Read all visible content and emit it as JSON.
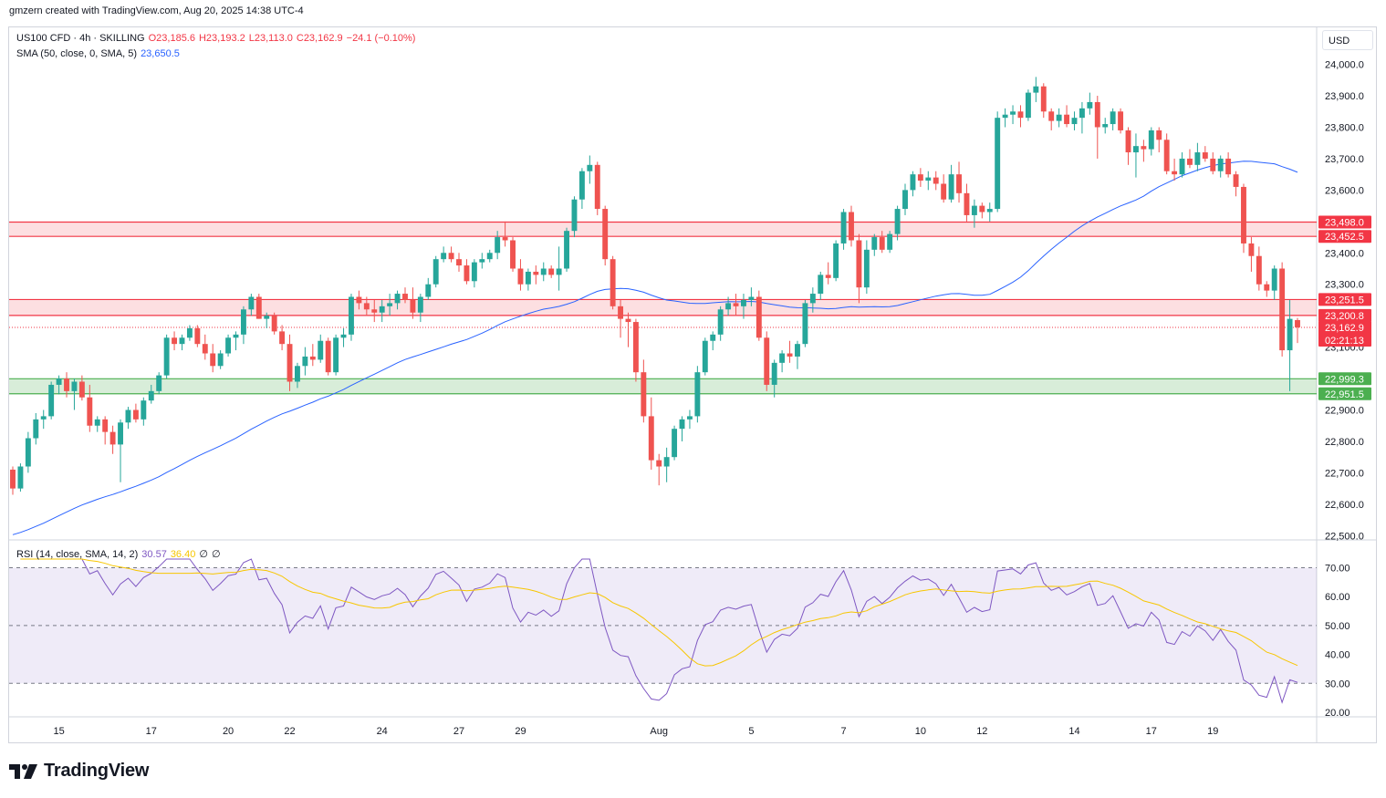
{
  "header": {
    "credit": "gmzern created with TradingView.com, Aug 20, 2025 14:38 UTC-4"
  },
  "legend": {
    "symbol": "US100 CFD · 4h · SKILLING",
    "open": "O23,185.6",
    "high": "H23,193.2",
    "low": "L23,113.0",
    "close": "C23,162.9",
    "change": "−24.1 (−0.10%)",
    "sma_label": "SMA (50, close, 0, SMA, 5)",
    "sma_value": "23,650.5",
    "rsi_label": "RSI (14, close, SMA, 14, 2)",
    "rsi_value": "30.57",
    "rsi_ma_value": "36.40",
    "rsi_extra1": "∅",
    "rsi_extra2": "∅"
  },
  "currency_button": "USD",
  "footer": {
    "brand": "TradingView"
  },
  "colors": {
    "up": "#26a69a",
    "down": "#ef5350",
    "sma": "#2962ff",
    "rsi": "#7e57c2",
    "rsi_ma": "#f7c600",
    "resistance_zone": "#f23645",
    "support_zone": "#4caf50"
  },
  "chart_data": {
    "type": "candlestick",
    "symbol": "US100 CFD",
    "timeframe": "4h",
    "y_ticks": [
      "24,000.0",
      "23,900.0",
      "23,800.0",
      "23,700.0",
      "23,600.0",
      "23,500.0",
      "23,400.0",
      "23,300.0",
      "23,200.0",
      "23,100.0",
      "23,000.0",
      "22,900.0",
      "22,800.0",
      "22,700.0",
      "22,600.0",
      "22,500.0"
    ],
    "ylim": [
      22500,
      24050
    ],
    "x_labels": [
      {
        "label": "15",
        "i": 6
      },
      {
        "label": "17",
        "i": 18
      },
      {
        "label": "20",
        "i": 28
      },
      {
        "label": "22",
        "i": 36
      },
      {
        "label": "24",
        "i": 48
      },
      {
        "label": "27",
        "i": 58
      },
      {
        "label": "29",
        "i": 66
      },
      {
        "label": "Aug",
        "i": 84
      },
      {
        "label": "5",
        "i": 96
      },
      {
        "label": "7",
        "i": 108
      },
      {
        "label": "10",
        "i": 118
      },
      {
        "label": "12",
        "i": 126
      },
      {
        "label": "14",
        "i": 138
      },
      {
        "label": "17",
        "i": 148
      },
      {
        "label": "19",
        "i": 156
      }
    ],
    "zones": [
      {
        "name": "resistance-upper",
        "low": 23452.5,
        "high": 23498.0,
        "labels": [
          "23,498.0",
          "23,452.5"
        ],
        "color": "#f23645"
      },
      {
        "name": "resistance-lower",
        "low": 23200.8,
        "high": 23251.5,
        "labels": [
          "23,251.5",
          "23,200.8"
        ],
        "color": "#f23645"
      },
      {
        "name": "support",
        "low": 22951.5,
        "high": 22999.3,
        "labels": [
          "22,999.3",
          "22,951.5"
        ],
        "color": "#4caf50"
      }
    ],
    "last_price": {
      "value": 23162.9,
      "label": "23,162.9",
      "countdown": "02:21:13"
    },
    "candles": [
      [
        22710,
        22720,
        22630,
        22650
      ],
      [
        22650,
        22730,
        22640,
        22720
      ],
      [
        22720,
        22830,
        22700,
        22810
      ],
      [
        22810,
        22890,
        22790,
        22870
      ],
      [
        22870,
        22900,
        22840,
        22880
      ],
      [
        22880,
        22990,
        22870,
        22980
      ],
      [
        22980,
        23010,
        22950,
        23000
      ],
      [
        23000,
        23020,
        22940,
        22960
      ],
      [
        22960,
        23000,
        22900,
        22990
      ],
      [
        22990,
        23010,
        22930,
        22940
      ],
      [
        22940,
        22980,
        22830,
        22850
      ],
      [
        22850,
        22880,
        22830,
        22870
      ],
      [
        22870,
        22880,
        22790,
        22830
      ],
      [
        22830,
        22850,
        22760,
        22790
      ],
      [
        22790,
        22870,
        22670,
        22860
      ],
      [
        22860,
        22910,
        22840,
        22900
      ],
      [
        22900,
        22920,
        22860,
        22870
      ],
      [
        22870,
        22940,
        22850,
        22930
      ],
      [
        22930,
        22980,
        22920,
        22960
      ],
      [
        22960,
        23020,
        22950,
        23010
      ],
      [
        23010,
        23140,
        23000,
        23130
      ],
      [
        23130,
        23150,
        23090,
        23110
      ],
      [
        23110,
        23140,
        23090,
        23130
      ],
      [
        23130,
        23170,
        23120,
        23160
      ],
      [
        23160,
        23170,
        23100,
        23110
      ],
      [
        23110,
        23140,
        23060,
        23080
      ],
      [
        23080,
        23110,
        23020,
        23040
      ],
      [
        23040,
        23090,
        23030,
        23080
      ],
      [
        23080,
        23140,
        23070,
        23130
      ],
      [
        23130,
        23150,
        23090,
        23140
      ],
      [
        23140,
        23230,
        23110,
        23220
      ],
      [
        23220,
        23270,
        23200,
        23260
      ],
      [
        23260,
        23270,
        23190,
        23190
      ],
      [
        23190,
        23210,
        23160,
        23200
      ],
      [
        23200,
        23210,
        23140,
        23150
      ],
      [
        23150,
        23170,
        23090,
        23110
      ],
      [
        23110,
        23140,
        22960,
        22990
      ],
      [
        22990,
        23050,
        22970,
        23040
      ],
      [
        23040,
        23100,
        23010,
        23070
      ],
      [
        23070,
        23110,
        23040,
        23060
      ],
      [
        23060,
        23140,
        23050,
        23120
      ],
      [
        23120,
        23130,
        23010,
        23020
      ],
      [
        23020,
        23140,
        23010,
        23130
      ],
      [
        23130,
        23160,
        23100,
        23140
      ],
      [
        23140,
        23270,
        23120,
        23260
      ],
      [
        23260,
        23280,
        23220,
        23240
      ],
      [
        23240,
        23260,
        23200,
        23220
      ],
      [
        23220,
        23250,
        23180,
        23210
      ],
      [
        23210,
        23250,
        23180,
        23230
      ],
      [
        23230,
        23270,
        23200,
        23240
      ],
      [
        23240,
        23280,
        23220,
        23270
      ],
      [
        23270,
        23290,
        23240,
        23250
      ],
      [
        23250,
        23290,
        23190,
        23210
      ],
      [
        23210,
        23270,
        23180,
        23260
      ],
      [
        23260,
        23320,
        23250,
        23300
      ],
      [
        23300,
        23390,
        23290,
        23380
      ],
      [
        23380,
        23420,
        23370,
        23400
      ],
      [
        23400,
        23420,
        23370,
        23380
      ],
      [
        23380,
        23400,
        23340,
        23360
      ],
      [
        23360,
        23380,
        23300,
        23310
      ],
      [
        23310,
        23380,
        23290,
        23370
      ],
      [
        23370,
        23400,
        23350,
        23380
      ],
      [
        23380,
        23410,
        23370,
        23400
      ],
      [
        23400,
        23470,
        23380,
        23450
      ],
      [
        23450,
        23500,
        23420,
        23440
      ],
      [
        23440,
        23450,
        23340,
        23350
      ],
      [
        23350,
        23380,
        23280,
        23300
      ],
      [
        23300,
        23350,
        23280,
        23340
      ],
      [
        23340,
        23360,
        23300,
        23330
      ],
      [
        23330,
        23370,
        23310,
        23350
      ],
      [
        23350,
        23360,
        23320,
        23330
      ],
      [
        23330,
        23420,
        23280,
        23350
      ],
      [
        23350,
        23480,
        23340,
        23470
      ],
      [
        23470,
        23580,
        23450,
        23570
      ],
      [
        23570,
        23670,
        23540,
        23660
      ],
      [
        23660,
        23710,
        23620,
        23680
      ],
      [
        23680,
        23690,
        23520,
        23540
      ],
      [
        23540,
        23550,
        23360,
        23380
      ],
      [
        23380,
        23390,
        23220,
        23230
      ],
      [
        23230,
        23250,
        23130,
        23190
      ],
      [
        23190,
        23210,
        23100,
        23180
      ],
      [
        23180,
        23190,
        22990,
        23020
      ],
      [
        23020,
        23060,
        22860,
        22880
      ],
      [
        22880,
        22940,
        22710,
        22740
      ],
      [
        22740,
        22760,
        22660,
        22720
      ],
      [
        22720,
        22780,
        22670,
        22750
      ],
      [
        22750,
        22850,
        22740,
        22840
      ],
      [
        22840,
        22880,
        22800,
        22870
      ],
      [
        22870,
        22900,
        22840,
        22880
      ],
      [
        22880,
        23040,
        22860,
        23020
      ],
      [
        23020,
        23130,
        23010,
        23120
      ],
      [
        23120,
        23150,
        23090,
        23140
      ],
      [
        23140,
        23230,
        23120,
        23220
      ],
      [
        23220,
        23260,
        23200,
        23240
      ],
      [
        23240,
        23270,
        23200,
        23230
      ],
      [
        23230,
        23270,
        23190,
        23250
      ],
      [
        23250,
        23290,
        23230,
        23260
      ],
      [
        23260,
        23280,
        23120,
        23130
      ],
      [
        23130,
        23150,
        22960,
        22980
      ],
      [
        22980,
        23060,
        22940,
        23050
      ],
      [
        23050,
        23090,
        23020,
        23080
      ],
      [
        23080,
        23120,
        23050,
        23070
      ],
      [
        23070,
        23120,
        23030,
        23110
      ],
      [
        23110,
        23250,
        23100,
        23240
      ],
      [
        23240,
        23290,
        23210,
        23270
      ],
      [
        23270,
        23340,
        23250,
        23330
      ],
      [
        23330,
        23370,
        23300,
        23320
      ],
      [
        23320,
        23440,
        23310,
        23430
      ],
      [
        23430,
        23540,
        23410,
        23530
      ],
      [
        23530,
        23550,
        23420,
        23440
      ],
      [
        23440,
        23460,
        23240,
        23290
      ],
      [
        23290,
        23440,
        23270,
        23410
      ],
      [
        23410,
        23460,
        23390,
        23450
      ],
      [
        23450,
        23470,
        23400,
        23410
      ],
      [
        23410,
        23470,
        23400,
        23460
      ],
      [
        23460,
        23550,
        23440,
        23540
      ],
      [
        23540,
        23620,
        23520,
        23600
      ],
      [
        23600,
        23660,
        23580,
        23650
      ],
      [
        23650,
        23670,
        23610,
        23630
      ],
      [
        23630,
        23660,
        23600,
        23640
      ],
      [
        23640,
        23660,
        23600,
        23620
      ],
      [
        23620,
        23650,
        23560,
        23570
      ],
      [
        23570,
        23680,
        23560,
        23650
      ],
      [
        23650,
        23690,
        23560,
        23590
      ],
      [
        23590,
        23620,
        23500,
        23520
      ],
      [
        23520,
        23570,
        23480,
        23550
      ],
      [
        23550,
        23560,
        23510,
        23530
      ],
      [
        23530,
        23560,
        23500,
        23540
      ],
      [
        23540,
        23850,
        23530,
        23830
      ],
      [
        23830,
        23860,
        23800,
        23840
      ],
      [
        23840,
        23870,
        23810,
        23850
      ],
      [
        23850,
        23870,
        23800,
        23830
      ],
      [
        23830,
        23920,
        23820,
        23910
      ],
      [
        23910,
        23960,
        23880,
        23930
      ],
      [
        23930,
        23940,
        23830,
        23850
      ],
      [
        23850,
        23860,
        23790,
        23820
      ],
      [
        23820,
        23860,
        23800,
        23840
      ],
      [
        23840,
        23870,
        23800,
        23810
      ],
      [
        23810,
        23850,
        23790,
        23830
      ],
      [
        23830,
        23880,
        23780,
        23860
      ],
      [
        23860,
        23910,
        23840,
        23880
      ],
      [
        23880,
        23900,
        23700,
        23800
      ],
      [
        23800,
        23830,
        23780,
        23810
      ],
      [
        23810,
        23860,
        23790,
        23850
      ],
      [
        23850,
        23860,
        23780,
        23790
      ],
      [
        23790,
        23800,
        23680,
        23720
      ],
      [
        23720,
        23780,
        23640,
        23740
      ],
      [
        23740,
        23760,
        23690,
        23730
      ],
      [
        23730,
        23800,
        23710,
        23790
      ],
      [
        23790,
        23800,
        23720,
        23760
      ],
      [
        23760,
        23780,
        23650,
        23660
      ],
      [
        23660,
        23700,
        23630,
        23650
      ],
      [
        23650,
        23720,
        23640,
        23700
      ],
      [
        23700,
        23730,
        23670,
        23680
      ],
      [
        23680,
        23750,
        23660,
        23720
      ],
      [
        23720,
        23740,
        23690,
        23700
      ],
      [
        23700,
        23720,
        23650,
        23660
      ],
      [
        23660,
        23710,
        23640,
        23700
      ],
      [
        23700,
        23720,
        23640,
        23650
      ],
      [
        23650,
        23660,
        23580,
        23610
      ],
      [
        23610,
        23620,
        23400,
        23430
      ],
      [
        23430,
        23450,
        23340,
        23390
      ],
      [
        23390,
        23420,
        23280,
        23300
      ],
      [
        23300,
        23310,
        23260,
        23280
      ],
      [
        23280,
        23360,
        23250,
        23350
      ],
      [
        23350,
        23370,
        23070,
        23090
      ],
      [
        23090,
        23250,
        22960,
        23190
      ],
      [
        23186,
        23193,
        23113,
        23163
      ]
    ],
    "sma": {
      "name": "SMA (50, close, 0, SMA, 5)",
      "value": 23650.5
    },
    "rsi": {
      "ylim": [
        17,
        73
      ],
      "y_ticks": [
        "70.00",
        "60.00",
        "50.00",
        "40.00",
        "30.00",
        "20.00"
      ],
      "levels": [
        70,
        50,
        30
      ],
      "rsi_value": 30.57,
      "ma_value": 36.4
    }
  }
}
